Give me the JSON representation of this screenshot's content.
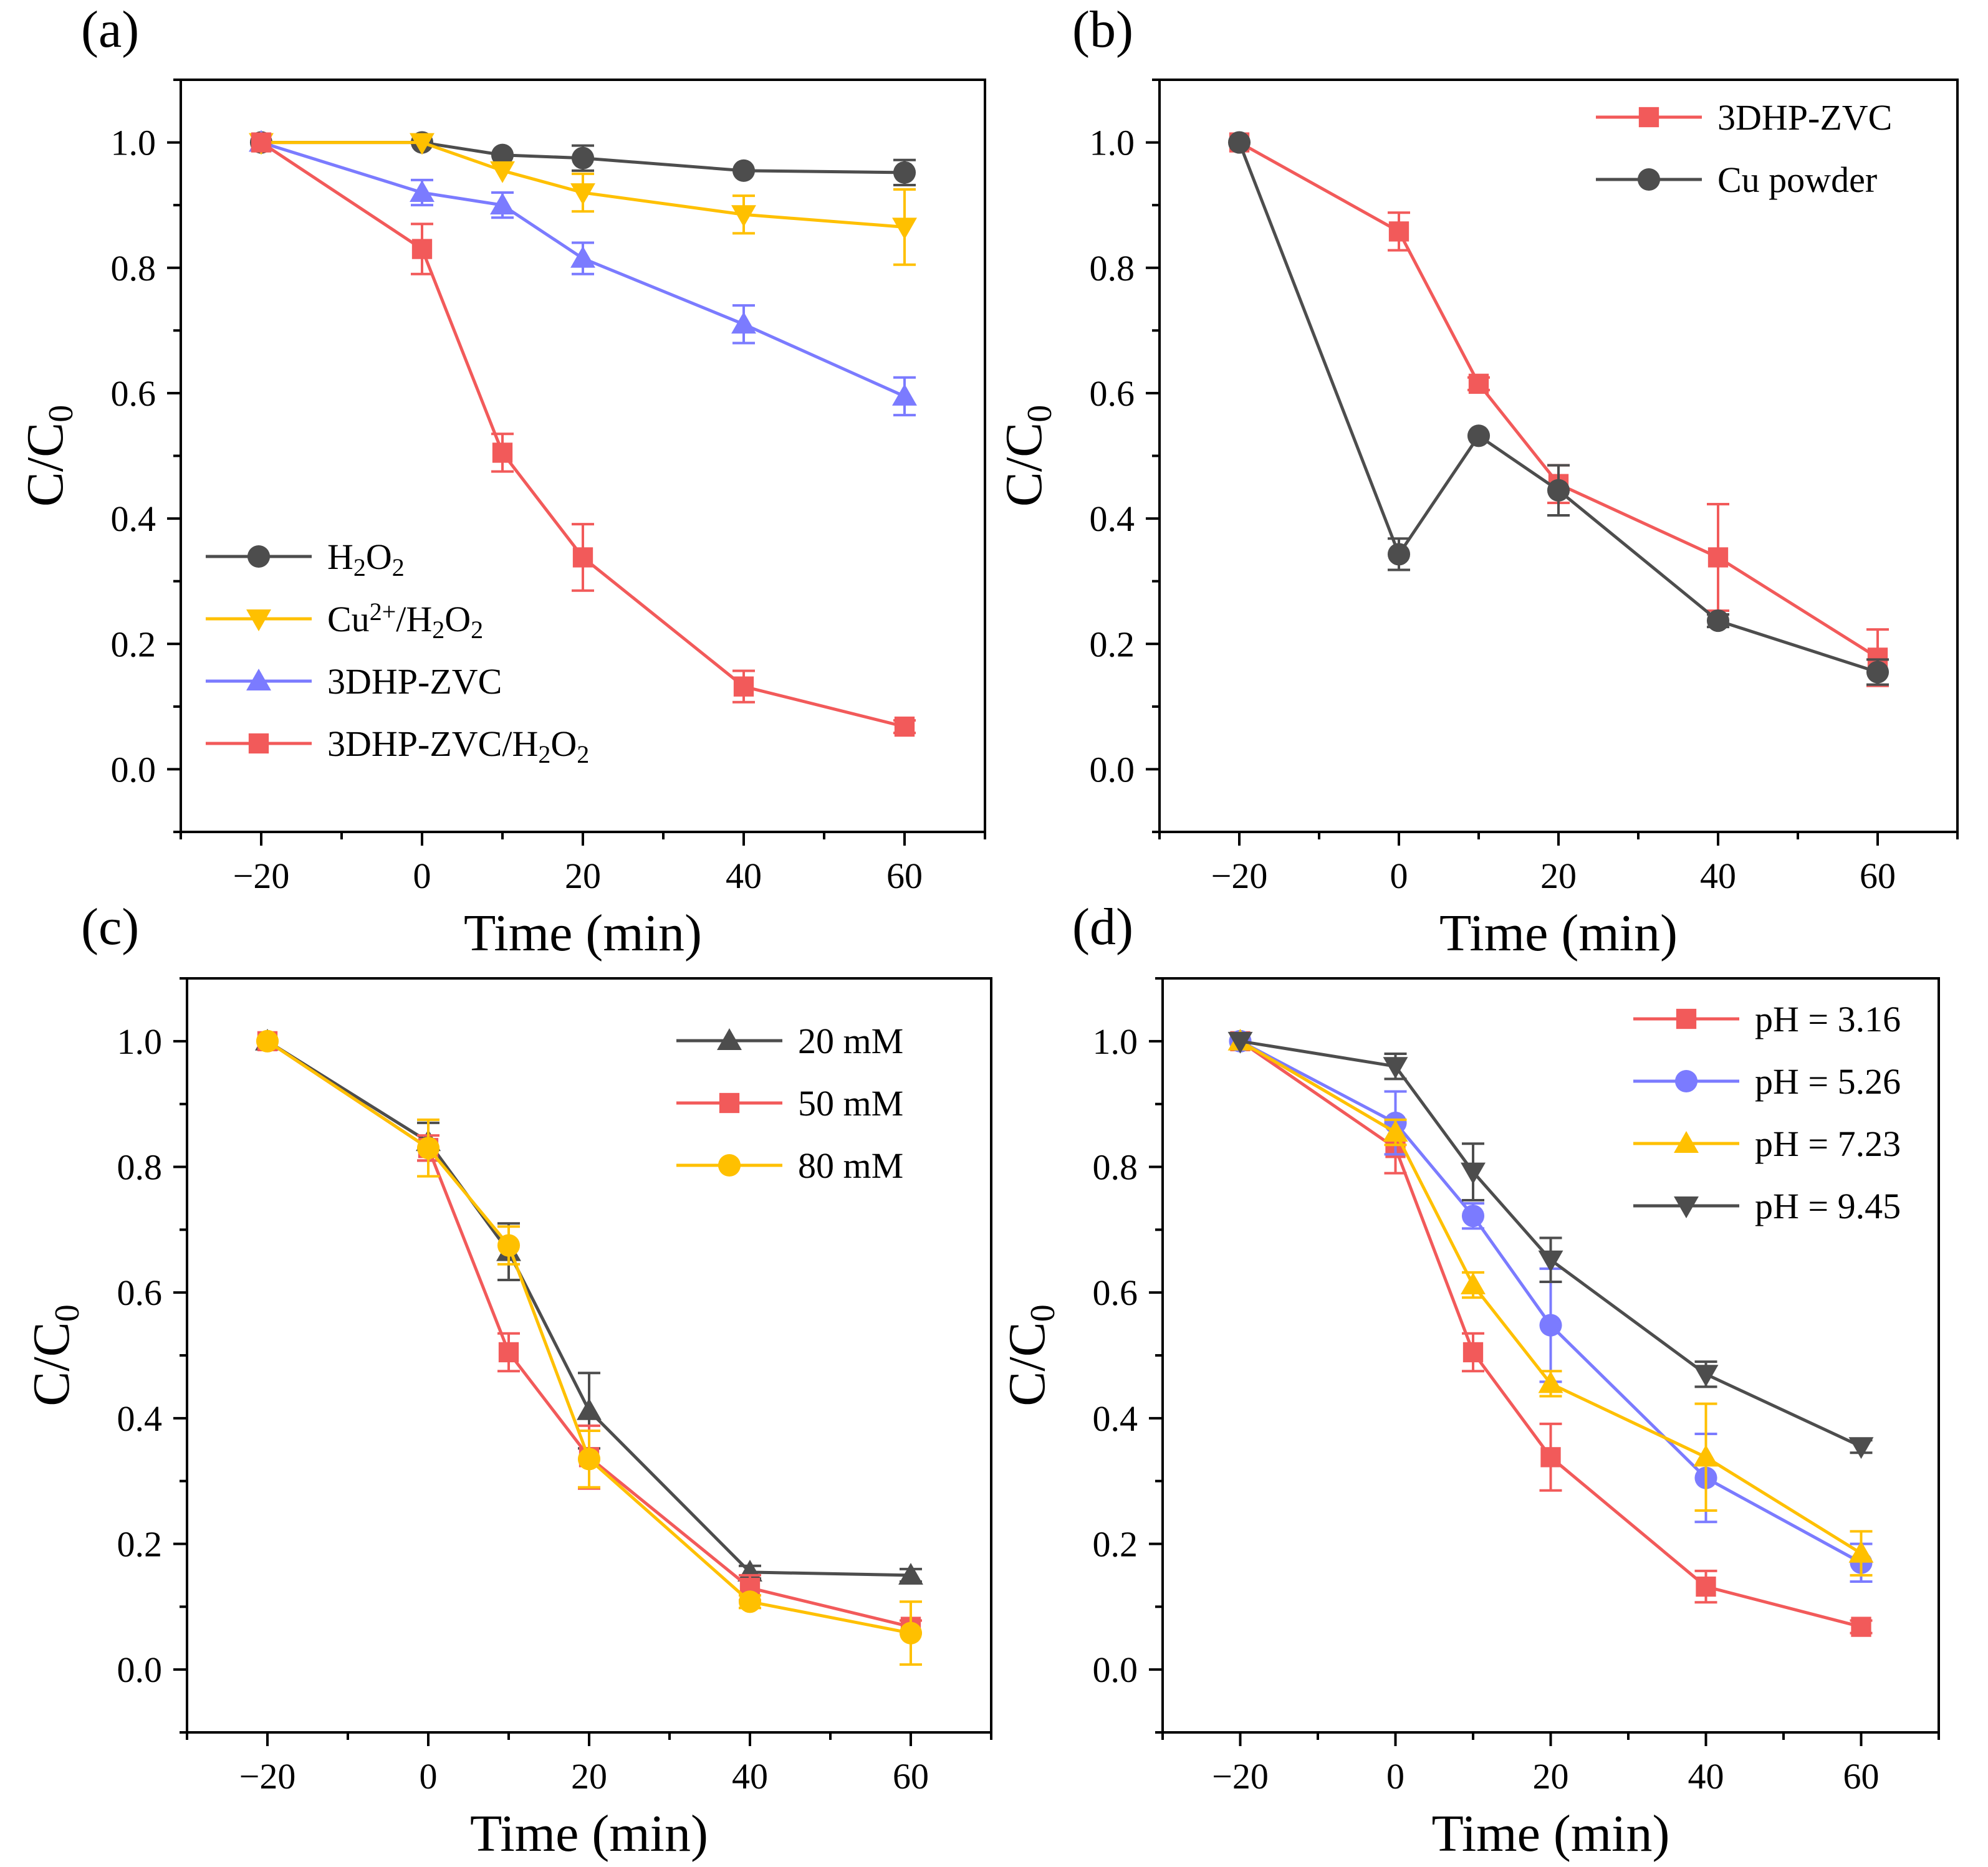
{
  "colors": {
    "black": "#4d4d4d",
    "yellow": "#ffc000",
    "blue": "#7b7bff",
    "red": "#f25a5a"
  },
  "chart_data": [
    {
      "panel": "(a)",
      "type": "line",
      "xlabel": "Time (min)",
      "ylabel": "C/C",
      "ylabel_sub": "0",
      "xlim": [
        -30,
        70
      ],
      "ylim": [
        -0.1,
        1.1
      ],
      "xticks": [
        -20,
        0,
        20,
        40,
        60
      ],
      "xtick_labels": [
        "−20",
        "0",
        "20",
        "40",
        "60"
      ],
      "yticks": [
        0.0,
        0.2,
        0.4,
        0.6,
        0.8,
        1.0
      ],
      "ytick_labels": [
        "0.0",
        "0.2",
        "0.4",
        "0.6",
        "0.8",
        "1.0"
      ],
      "legend_position": "bottom-left",
      "series": [
        {
          "name": "H2O2",
          "legend": [
            {
              "t": "H"
            },
            {
              "t": "2",
              "s": "sub"
            },
            {
              "t": "O"
            },
            {
              "t": "2",
              "s": "sub"
            }
          ],
          "color": "black",
          "marker": "circle",
          "x": [
            -20,
            0,
            10,
            20,
            40,
            60
          ],
          "y": [
            1.0,
            1.0,
            0.98,
            0.975,
            0.955,
            0.952
          ],
          "err": [
            0,
            0,
            0,
            0.02,
            0,
            0.02
          ]
        },
        {
          "name": "Cu2+/H2O2",
          "legend": [
            {
              "t": "Cu"
            },
            {
              "t": "2+",
              "s": "sup"
            },
            {
              "t": "/H"
            },
            {
              "t": "2",
              "s": "sub"
            },
            {
              "t": "O"
            },
            {
              "t": "2",
              "s": "sub"
            }
          ],
          "color": "yellow",
          "marker": "triangle-down",
          "x": [
            -20,
            0,
            10,
            20,
            40,
            60
          ],
          "y": [
            1.0,
            1.0,
            0.955,
            0.92,
            0.885,
            0.865
          ],
          "err": [
            0,
            0,
            0,
            0.03,
            0.03,
            0.06
          ]
        },
        {
          "name": "3DHP-ZVC",
          "legend": [
            {
              "t": "3DHP-ZVC"
            }
          ],
          "color": "blue",
          "marker": "triangle-up",
          "x": [
            -20,
            0,
            10,
            20,
            40,
            60
          ],
          "y": [
            1.0,
            0.92,
            0.9,
            0.815,
            0.71,
            0.595
          ],
          "err": [
            0,
            0.02,
            0.02,
            0.025,
            0.03,
            0.03
          ]
        },
        {
          "name": "3DHP-ZVC/H2O2",
          "legend": [
            {
              "t": "3DHP-ZVC/H"
            },
            {
              "t": "2",
              "s": "sub"
            },
            {
              "t": "O"
            },
            {
              "t": "2",
              "s": "sub"
            }
          ],
          "color": "red",
          "marker": "square",
          "x": [
            -20,
            0,
            10,
            20,
            40,
            60
          ],
          "y": [
            1.0,
            0.83,
            0.505,
            0.338,
            0.132,
            0.068
          ],
          "err": [
            0,
            0.04,
            0.03,
            0.053,
            0.025,
            0.01
          ]
        }
      ]
    },
    {
      "panel": "(b)",
      "type": "line",
      "xlabel": "Time (min)",
      "ylabel": "C/C",
      "ylabel_sub": "0",
      "xlim": [
        -30,
        70
      ],
      "ylim": [
        -0.1,
        1.1
      ],
      "xticks": [
        -20,
        0,
        20,
        40,
        60
      ],
      "xtick_labels": [
        "−20",
        "0",
        "20",
        "40",
        "60"
      ],
      "yticks": [
        0.0,
        0.2,
        0.4,
        0.6,
        0.8,
        1.0
      ],
      "ytick_labels": [
        "0.0",
        "0.2",
        "0.4",
        "0.6",
        "0.8",
        "1.0"
      ],
      "legend_position": "top-right",
      "series": [
        {
          "name": "3DHP-ZVC",
          "legend": [
            {
              "t": "3DHP-ZVC"
            }
          ],
          "color": "red",
          "marker": "square",
          "x": [
            -20,
            0,
            10,
            20,
            40,
            60
          ],
          "y": [
            1.0,
            0.858,
            0.615,
            0.455,
            0.338,
            0.178
          ],
          "err": [
            0,
            0.03,
            0.01,
            0.03,
            0.085,
            0.045
          ]
        },
        {
          "name": "Cu powder",
          "legend": [
            {
              "t": "Cu powder"
            }
          ],
          "color": "black",
          "marker": "circle",
          "x": [
            -20,
            0,
            10,
            20,
            40,
            60
          ],
          "y": [
            1.0,
            0.343,
            0.532,
            0.445,
            0.237,
            0.155
          ],
          "err": [
            0,
            0.025,
            0,
            0.04,
            0.01,
            0.02
          ]
        }
      ]
    },
    {
      "panel": "(c)",
      "type": "line",
      "xlabel": "Time (min)",
      "ylabel": "C/C",
      "ylabel_sub": "0",
      "xlim": [
        -30,
        70
      ],
      "ylim": [
        -0.1,
        1.1
      ],
      "xticks": [
        -20,
        0,
        20,
        40,
        60
      ],
      "xtick_labels": [
        "−20",
        "0",
        "20",
        "40",
        "60"
      ],
      "yticks": [
        0.0,
        0.2,
        0.4,
        0.6,
        0.8,
        1.0
      ],
      "ytick_labels": [
        "0.0",
        "0.2",
        "0.4",
        "0.6",
        "0.8",
        "1.0"
      ],
      "legend_position": "top-right",
      "series": [
        {
          "name": "20 mM",
          "legend": [
            {
              "t": "20 mM"
            }
          ],
          "color": "black",
          "marker": "triangle-up",
          "x": [
            -20,
            0,
            10,
            20,
            40,
            60
          ],
          "y": [
            1.0,
            0.84,
            0.665,
            0.412,
            0.155,
            0.15
          ],
          "err": [
            0,
            0.03,
            0.045,
            0.06,
            0.01,
            0.01
          ]
        },
        {
          "name": "50 mM",
          "legend": [
            {
              "t": "50 mM"
            }
          ],
          "color": "red",
          "marker": "square",
          "x": [
            -20,
            0,
            10,
            20,
            40,
            60
          ],
          "y": [
            1.0,
            0.83,
            0.505,
            0.338,
            0.13,
            0.068
          ],
          "err": [
            0,
            0.02,
            0.03,
            0.05,
            0.02,
            0.01
          ]
        },
        {
          "name": "80 mM",
          "legend": [
            {
              "t": "80 mM"
            }
          ],
          "color": "yellow",
          "marker": "circle",
          "x": [
            -20,
            0,
            10,
            20,
            40,
            60
          ],
          "y": [
            1.0,
            0.83,
            0.675,
            0.335,
            0.108,
            0.058
          ],
          "err": [
            0,
            0.045,
            0.03,
            0.045,
            0.01,
            0.05
          ]
        }
      ]
    },
    {
      "panel": "(d)",
      "type": "line",
      "xlabel": "Time (min)",
      "ylabel": "C/C",
      "ylabel_sub": "0",
      "xlim": [
        -30,
        70
      ],
      "ylim": [
        -0.1,
        1.1
      ],
      "xticks": [
        -20,
        0,
        20,
        40,
        60
      ],
      "xtick_labels": [
        "−20",
        "0",
        "20",
        "40",
        "60"
      ],
      "yticks": [
        0.0,
        0.2,
        0.4,
        0.6,
        0.8,
        1.0
      ],
      "ytick_labels": [
        "0.0",
        "0.2",
        "0.4",
        "0.6",
        "0.8",
        "1.0"
      ],
      "legend_position": "top-right",
      "series": [
        {
          "name": "pH = 3.16",
          "legend": [
            {
              "t": "pH = 3.16"
            }
          ],
          "color": "red",
          "marker": "square",
          "x": [
            -20,
            0,
            10,
            20,
            40,
            60
          ],
          "y": [
            1.0,
            0.83,
            0.505,
            0.338,
            0.132,
            0.068
          ],
          "err": [
            0,
            0.04,
            0.03,
            0.053,
            0.025,
            0.01
          ]
        },
        {
          "name": "pH = 5.26",
          "legend": [
            {
              "t": "pH = 5.26"
            }
          ],
          "color": "blue",
          "marker": "circle",
          "x": [
            -20,
            0,
            10,
            20,
            40,
            60
          ],
          "y": [
            1.0,
            0.87,
            0.722,
            0.548,
            0.305,
            0.17
          ],
          "err": [
            0,
            0.05,
            0.02,
            0.09,
            0.07,
            0.03
          ]
        },
        {
          "name": "pH = 7.23",
          "legend": [
            {
              "t": "pH = 7.23"
            }
          ],
          "color": "yellow",
          "marker": "triangle-up",
          "x": [
            -20,
            0,
            10,
            20,
            40,
            60
          ],
          "y": [
            1.0,
            0.855,
            0.612,
            0.455,
            0.338,
            0.185
          ],
          "err": [
            0,
            0.02,
            0.02,
            0.02,
            0.085,
            0.035
          ]
        },
        {
          "name": "pH = 9.45",
          "legend": [
            {
              "t": "pH = 9.45"
            }
          ],
          "color": "black",
          "marker": "triangle-down",
          "x": [
            -20,
            0,
            10,
            20,
            40,
            60
          ],
          "y": [
            1.0,
            0.96,
            0.792,
            0.652,
            0.47,
            0.355
          ],
          "err": [
            0,
            0.02,
            0.045,
            0.035,
            0.02,
            0.01
          ]
        }
      ]
    }
  ]
}
